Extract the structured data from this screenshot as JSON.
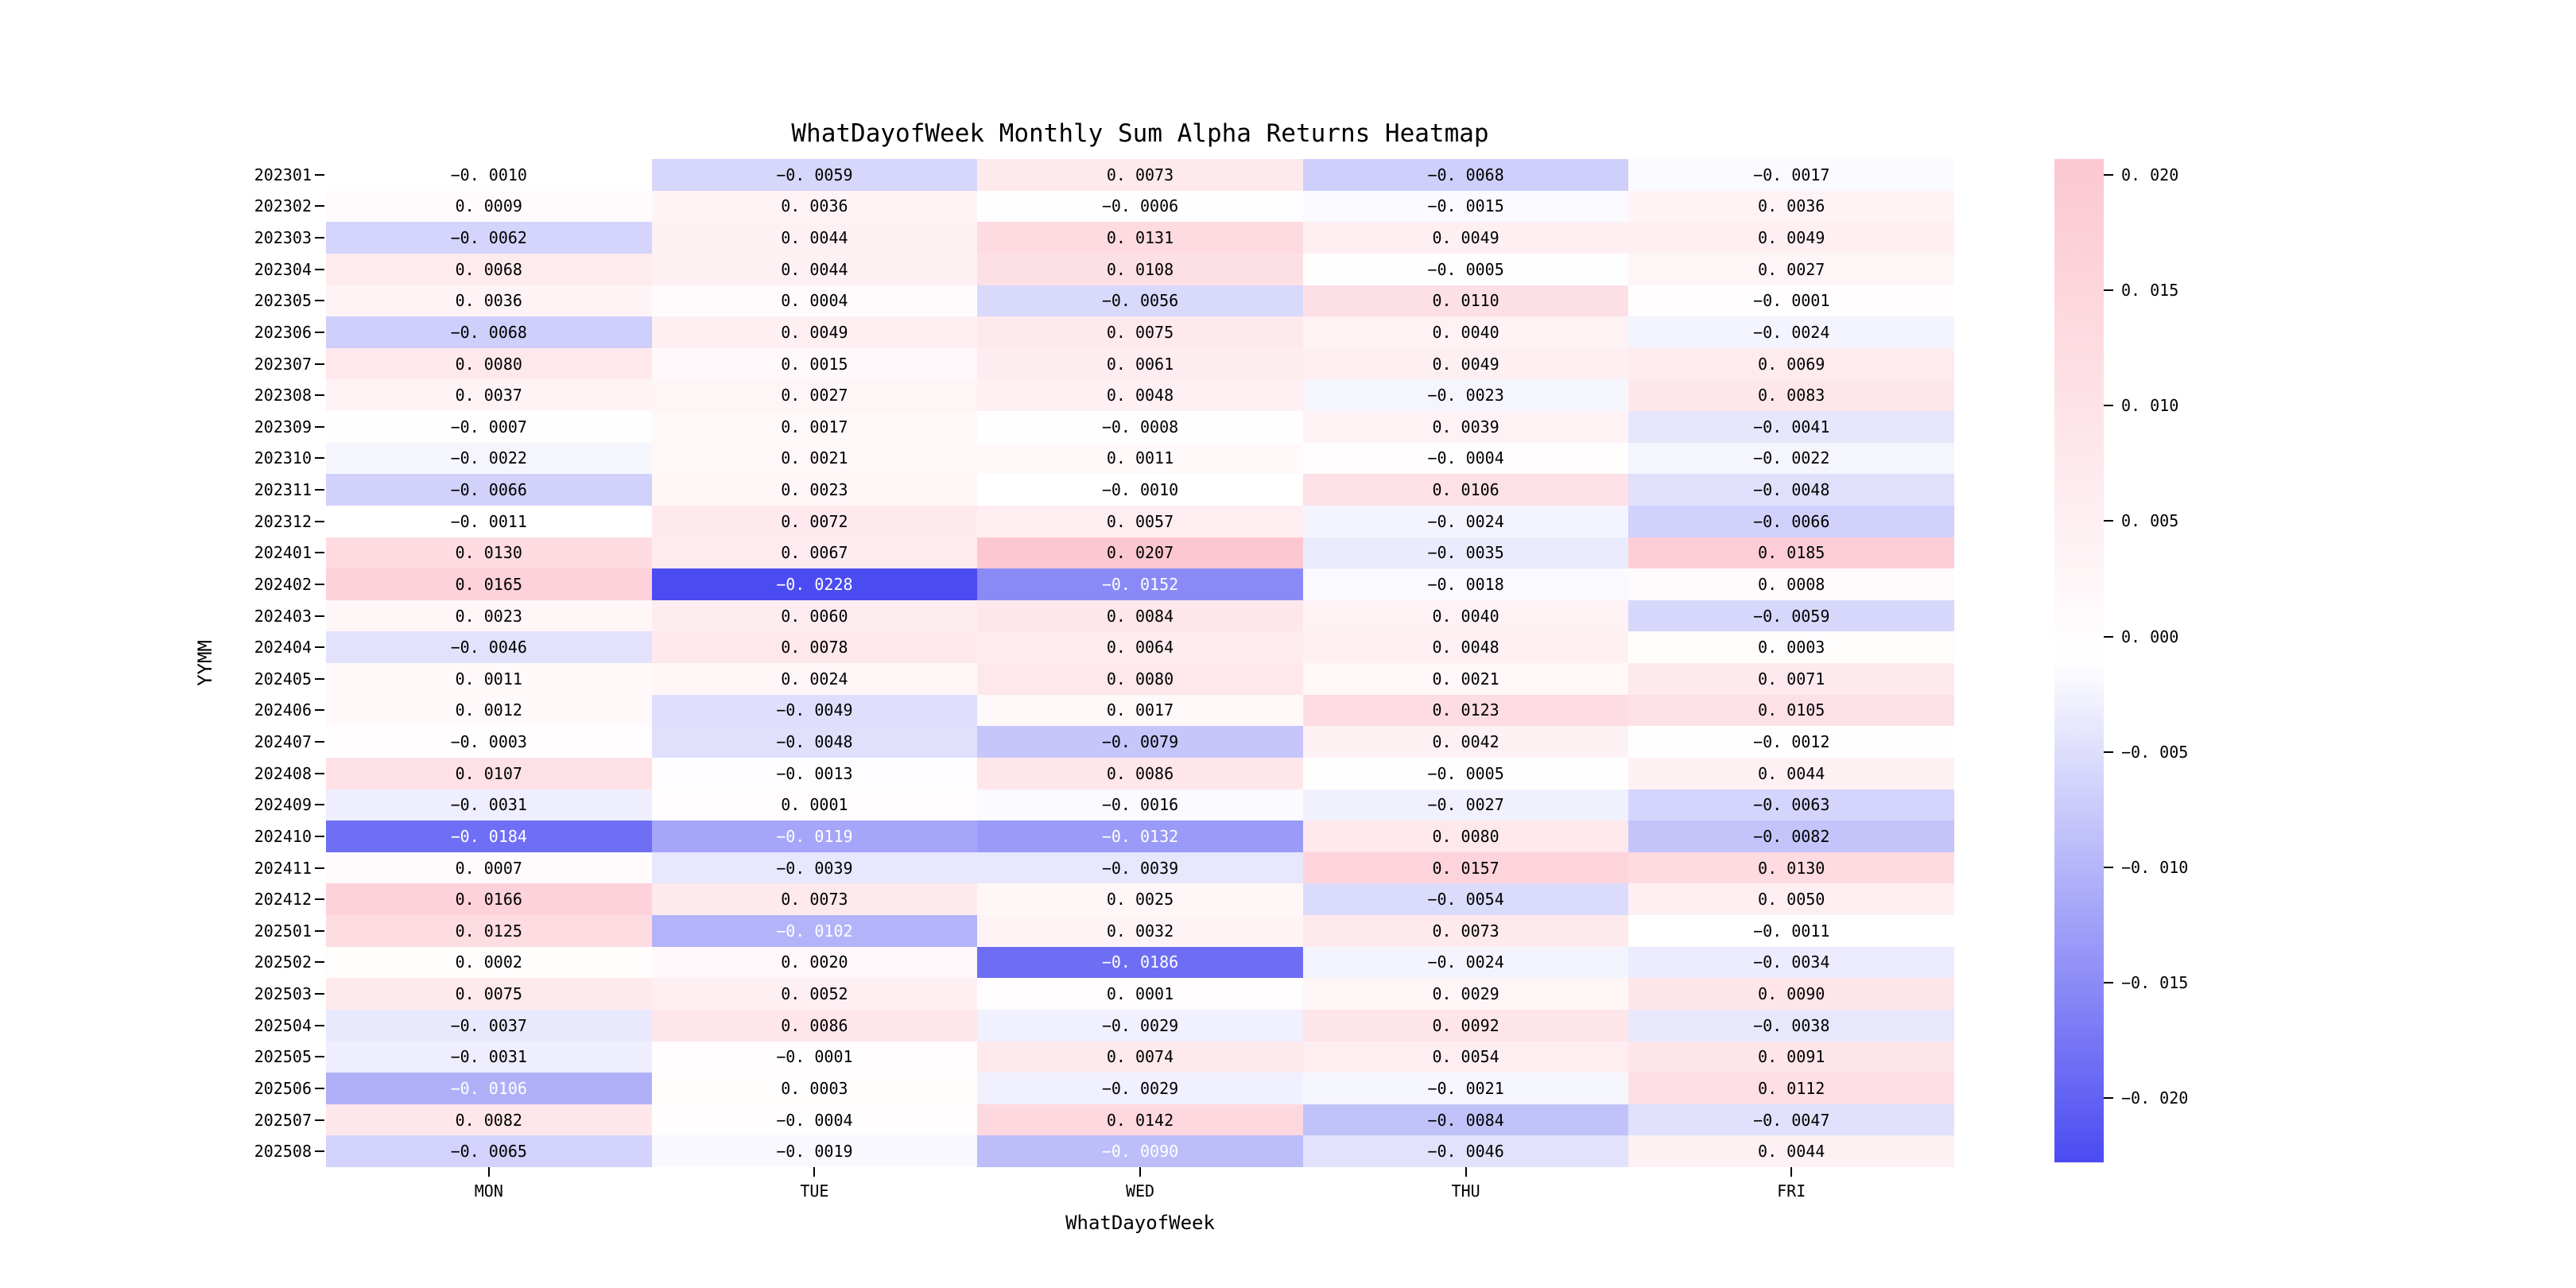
{
  "title": "WhatDayofWeek Monthly Sum Alpha Returns Heatmap",
  "chart_data": {
    "type": "heatmap",
    "title": "WhatDayofWeek Monthly Sum Alpha Returns Heatmap",
    "xlabel": "WhatDayofWeek",
    "ylabel": "YYMM",
    "columns": [
      "MON",
      "TUE",
      "WED",
      "THU",
      "FRI"
    ],
    "rows": [
      "202301",
      "202302",
      "202303",
      "202304",
      "202305",
      "202306",
      "202307",
      "202308",
      "202309",
      "202310",
      "202311",
      "202312",
      "202401",
      "202402",
      "202403",
      "202404",
      "202405",
      "202406",
      "202407",
      "202408",
      "202409",
      "202410",
      "202411",
      "202412",
      "202501",
      "202502",
      "202503",
      "202504",
      "202505",
      "202506",
      "202507",
      "202508"
    ],
    "values": [
      [
        -0.001,
        -0.0059,
        0.0073,
        -0.0068,
        -0.0017
      ],
      [
        0.0009,
        0.0036,
        -0.0006,
        -0.0015,
        0.0036
      ],
      [
        -0.0062,
        0.0044,
        0.0131,
        0.0049,
        0.0049
      ],
      [
        0.0068,
        0.0044,
        0.0108,
        -0.0005,
        0.0027
      ],
      [
        0.0036,
        0.0004,
        -0.0056,
        0.011,
        -0.0001
      ],
      [
        -0.0068,
        0.0049,
        0.0075,
        0.004,
        -0.0024
      ],
      [
        0.008,
        0.0015,
        0.0061,
        0.0049,
        0.0069
      ],
      [
        0.0037,
        0.0027,
        0.0048,
        -0.0023,
        0.0083
      ],
      [
        -0.0007,
        0.0017,
        -0.0008,
        0.0039,
        -0.0041
      ],
      [
        -0.0022,
        0.0021,
        0.0011,
        -0.0004,
        -0.0022
      ],
      [
        -0.0066,
        0.0023,
        -0.001,
        0.0106,
        -0.0048
      ],
      [
        -0.0011,
        0.0072,
        0.0057,
        -0.0024,
        -0.0066
      ],
      [
        0.013,
        0.0067,
        0.0207,
        -0.0035,
        0.0185
      ],
      [
        0.0165,
        -0.0228,
        -0.0152,
        -0.0018,
        0.0008
      ],
      [
        0.0023,
        0.006,
        0.0084,
        0.004,
        -0.0059
      ],
      [
        -0.0046,
        0.0078,
        0.0064,
        0.0048,
        0.0003
      ],
      [
        0.0011,
        0.0024,
        0.008,
        0.0021,
        0.0071
      ],
      [
        0.0012,
        -0.0049,
        0.0017,
        0.0123,
        0.0105
      ],
      [
        -0.0003,
        -0.0048,
        -0.0079,
        0.0042,
        -0.0012
      ],
      [
        0.0107,
        -0.0013,
        0.0086,
        -0.0005,
        0.0044
      ],
      [
        -0.0031,
        0.0001,
        -0.0016,
        -0.0027,
        -0.0063
      ],
      [
        -0.0184,
        -0.0119,
        -0.0132,
        0.008,
        -0.0082
      ],
      [
        0.0007,
        -0.0039,
        -0.0039,
        0.0157,
        0.013
      ],
      [
        0.0166,
        0.0073,
        0.0025,
        -0.0054,
        0.005
      ],
      [
        0.0125,
        -0.0102,
        0.0032,
        0.0073,
        -0.0011
      ],
      [
        0.0002,
        0.002,
        -0.0186,
        -0.0024,
        -0.0034
      ],
      [
        0.0075,
        0.0052,
        0.0001,
        0.0029,
        0.009
      ],
      [
        -0.0037,
        0.0086,
        -0.0029,
        0.0092,
        -0.0038
      ],
      [
        -0.0031,
        -0.0001,
        0.0074,
        0.0054,
        0.0091
      ],
      [
        -0.0106,
        0.0003,
        -0.0029,
        -0.0021,
        0.0112
      ],
      [
        0.0082,
        -0.0004,
        0.0142,
        -0.0084,
        -0.0047
      ],
      [
        -0.0065,
        -0.0019,
        -0.009,
        -0.0046,
        0.0044
      ]
    ],
    "vmin": -0.0228,
    "vmax": 0.0207,
    "colormap": {
      "negative_end": "#4b4bf2",
      "center": "#ffffff",
      "positive_end": "#fcc7d1",
      "white_text_at_or_below": -0.0088
    },
    "colorbar_ticks": [
      0.02,
      0.015,
      0.01,
      0.005,
      0.0,
      -0.005,
      -0.01,
      -0.015,
      -0.02
    ],
    "colorbar_position": "right",
    "grid": false,
    "axis_ranges": {
      "x_categories_count": 5,
      "y_categories_count": 32
    }
  }
}
